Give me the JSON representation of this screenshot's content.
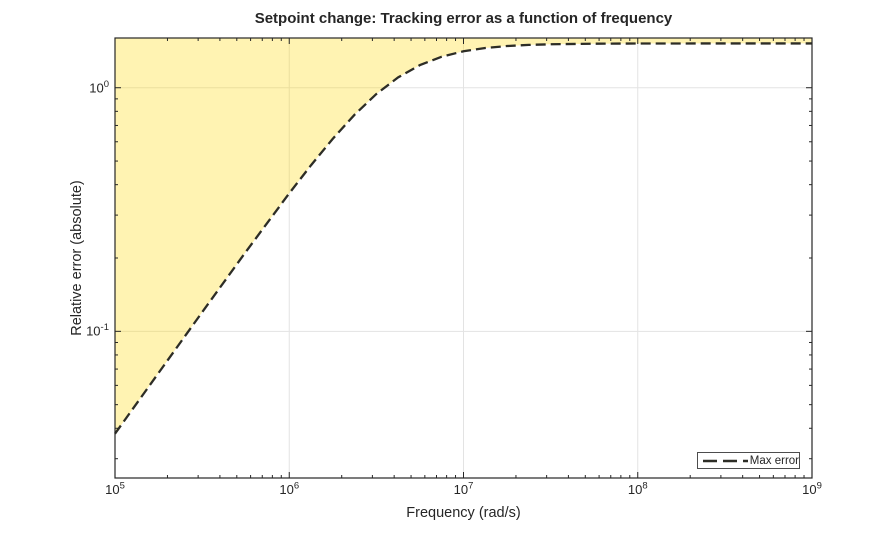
{
  "chart_data": {
    "type": "area",
    "title": "Setpoint change: Tracking error as a function of frequency",
    "xlabel": "Frequency (rad/s)",
    "ylabel": "Relative error (absolute)",
    "x_scale": "log",
    "y_scale": "log",
    "xlim": [
      100000,
      1000000000
    ],
    "ylim": [
      0.025,
      1.6
    ],
    "tick_base": "10",
    "x_tick_exponents": [
      5,
      6,
      7,
      8,
      9
    ],
    "y_tick_exponents": [
      0,
      -1
    ],
    "grid": true,
    "minor_ticks": true,
    "legend_position": "southeast",
    "series": [
      {
        "name": "Max error",
        "line_style": "dashed",
        "line_color": "#2d2d26",
        "fill_color": "#ffd700",
        "fill_opacity": 0.3,
        "fill_to": "top",
        "x": [
          100000,
          177828,
          316228,
          562341,
          1000000,
          1333521,
          1778279,
          2371374,
          3162278,
          4216965,
          5623413,
          7498942,
          10000000,
          13335214,
          17782794,
          23713737,
          31622777,
          56234133,
          100000000,
          316227766,
          1000000000
        ],
        "y": [
          0.038,
          0.0675,
          0.1198,
          0.2116,
          0.3687,
          0.4807,
          0.6175,
          0.7751,
          0.9427,
          1.1028,
          1.2387,
          1.3411,
          1.4113,
          1.4559,
          1.483,
          1.4988,
          1.508,
          1.5162,
          1.5188,
          1.5199,
          1.52
        ]
      }
    ]
  },
  "colors": {
    "axis": "#262626",
    "grid": "#e3e3e3",
    "background": "#ffffff",
    "legend_border": "#4d4d4d"
  }
}
